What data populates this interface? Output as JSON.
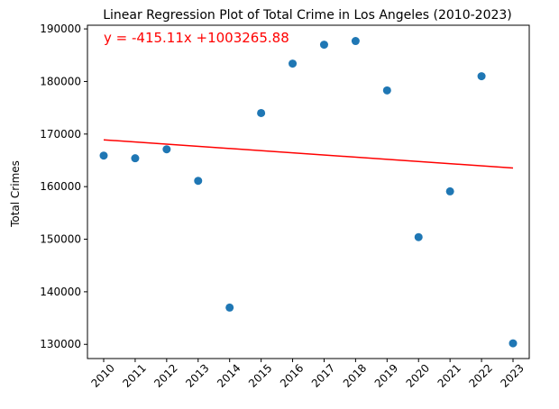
{
  "chart_data": {
    "type": "scatter",
    "title": "Linear Regression Plot of Total Crime in Los Angeles (2010-2023)",
    "xlabel": "",
    "ylabel": "Total Crimes",
    "x": [
      "2010",
      "2011",
      "2012",
      "2013",
      "2014",
      "2015",
      "2016",
      "2017",
      "2018",
      "2019",
      "2020",
      "2021",
      "2022",
      "2023"
    ],
    "series": [
      {
        "values": [
          165900,
          165400,
          167100,
          161100,
          137000,
          174000,
          183400,
          187000,
          187700,
          178300,
          150400,
          159100,
          181000,
          130200
        ],
        "color": "#1f77b4"
      }
    ],
    "regression": {
      "equation": "y = -415.11x +1003265.88",
      "slope": -415.11,
      "color": "#ff0000",
      "start_value": 168900,
      "end_value": 163550
    },
    "yticks": [
      130000,
      140000,
      150000,
      160000,
      170000,
      180000,
      190000
    ],
    "ylim": [
      127300,
      190700
    ],
    "grid": false,
    "legend": false
  }
}
